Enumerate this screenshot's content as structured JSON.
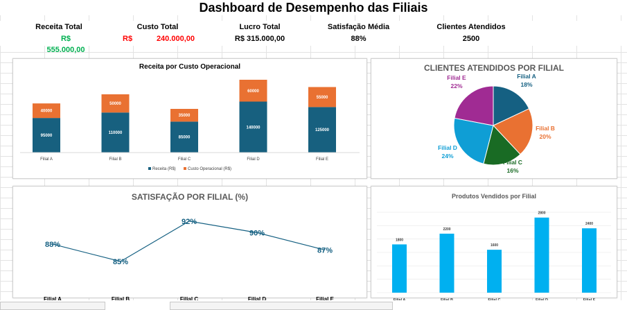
{
  "title": "Dashboard de Desempenho das Filiais",
  "kpis": {
    "receita": {
      "label": "Receita Total",
      "value": "R$ 555.000,00",
      "color": "#00b050"
    },
    "custo": {
      "label": "Custo Total",
      "currency": "R$",
      "value": "240.000,00",
      "color": "#ff0000"
    },
    "lucro": {
      "label": "Lucro Total",
      "value": "R$ 315.000,00",
      "color": "#000000"
    },
    "satisfacao": {
      "label": "Satisfação Média",
      "value": "88%",
      "color": "#000000"
    },
    "clientes": {
      "label": "Clientes Atendidos",
      "value": "2500",
      "color": "#000000"
    }
  },
  "chart_data": [
    {
      "id": "receita-custo",
      "type": "bar",
      "stacked": true,
      "title": "Receita por Custo Operacional",
      "categories": [
        "Filial A",
        "Filial B",
        "Filial C",
        "Filial D",
        "Filial E"
      ],
      "series": [
        {
          "name": "Receita (R$)",
          "values": [
            95000,
            110000,
            85000,
            140000,
            125000
          ],
          "color": "#17607f"
        },
        {
          "name": "Custo Operacional (R$)",
          "values": [
            40000,
            50000,
            35000,
            60000,
            55000
          ],
          "color": "#e97132"
        }
      ],
      "legend": "bottom"
    },
    {
      "id": "clientes",
      "type": "pie",
      "title": "CLIENTES ATENDIDOS POR FILIAL",
      "slices": [
        {
          "label": "Filial A",
          "pct": "18%",
          "value": 18,
          "color": "#156082"
        },
        {
          "label": "Filial B",
          "pct": "20%",
          "value": 20,
          "color": "#e97132"
        },
        {
          "label": "Filial C",
          "pct": "16%",
          "value": 16,
          "color": "#196b24"
        },
        {
          "label": "Filial D",
          "pct": "24%",
          "value": 24,
          "color": "#0f9ed5"
        },
        {
          "label": "Filial E",
          "pct": "22%",
          "value": 22,
          "color": "#a02b93"
        }
      ]
    },
    {
      "id": "satisfacao",
      "type": "line",
      "title": "SATISFAÇÃO POR FILIAL (%)",
      "categories": [
        "Filial A",
        "Filial B",
        "Filial C",
        "Filial D",
        "Filial E"
      ],
      "values": [
        88,
        85,
        92,
        90,
        87
      ],
      "labels": [
        "88%",
        "85%",
        "92%",
        "90%",
        "87%"
      ],
      "color": "#156082"
    },
    {
      "id": "produtos",
      "type": "bar",
      "title": "Produtos Vendidos por Filial",
      "categories": [
        "Filial A",
        "Filial B",
        "Filial C",
        "Filial D",
        "Filial E"
      ],
      "values": [
        1800,
        2200,
        1600,
        2800,
        2400
      ],
      "color": "#00b0f0",
      "grid": true
    }
  ]
}
